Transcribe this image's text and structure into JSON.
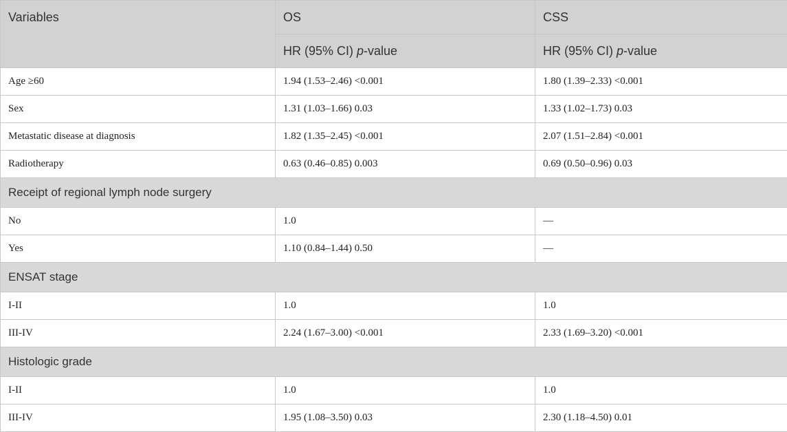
{
  "header": {
    "variables": "Variables",
    "os": "OS",
    "css": "CSS",
    "os_sub_prefix": "HR (95% CI) ",
    "os_sub_italic": "p",
    "os_sub_suffix": "-value",
    "css_sub_prefix": "HR (95% CI) ",
    "css_sub_italic": "p",
    "css_sub_suffix": "-value"
  },
  "rows": [
    {
      "type": "data",
      "variable": "Age ≥60",
      "os": "1.94 (1.53–2.46) <0.001",
      "css": "1.80 (1.39–2.33) <0.001"
    },
    {
      "type": "data",
      "variable": "Sex",
      "os": "1.31 (1.03–1.66) 0.03",
      "css": "1.33 (1.02–1.73) 0.03"
    },
    {
      "type": "data",
      "variable": "Metastatic disease at diagnosis",
      "os": "1.82 (1.35–2.45) <0.001",
      "css": "2.07 (1.51–2.84) <0.001"
    },
    {
      "type": "data",
      "variable": "Radiotherapy",
      "os": "0.63 (0.46–0.85) 0.003",
      "css": "0.69 (0.50–0.96) 0.03"
    },
    {
      "type": "section",
      "label": "Receipt of regional lymph node surgery"
    },
    {
      "type": "data",
      "variable": "No",
      "os": "1.0",
      "css": "—"
    },
    {
      "type": "data",
      "variable": "Yes",
      "os": "1.10 (0.84–1.44) 0.50",
      "css": "—"
    },
    {
      "type": "section",
      "label": "ENSAT stage"
    },
    {
      "type": "data",
      "variable": "I-II",
      "os": "1.0",
      "css": "1.0"
    },
    {
      "type": "data",
      "variable": "III-IV",
      "os": "2.24 (1.67–3.00) <0.001",
      "css": "2.33 (1.69–3.20) <0.001"
    },
    {
      "type": "section",
      "label": "Histologic grade"
    },
    {
      "type": "data",
      "variable": "I-II",
      "os": "1.0",
      "css": "1.0"
    },
    {
      "type": "data",
      "variable": "III-IV",
      "os": "1.95 (1.08–3.50) 0.03",
      "css": "2.30 (1.18–4.50) 0.01"
    }
  ]
}
